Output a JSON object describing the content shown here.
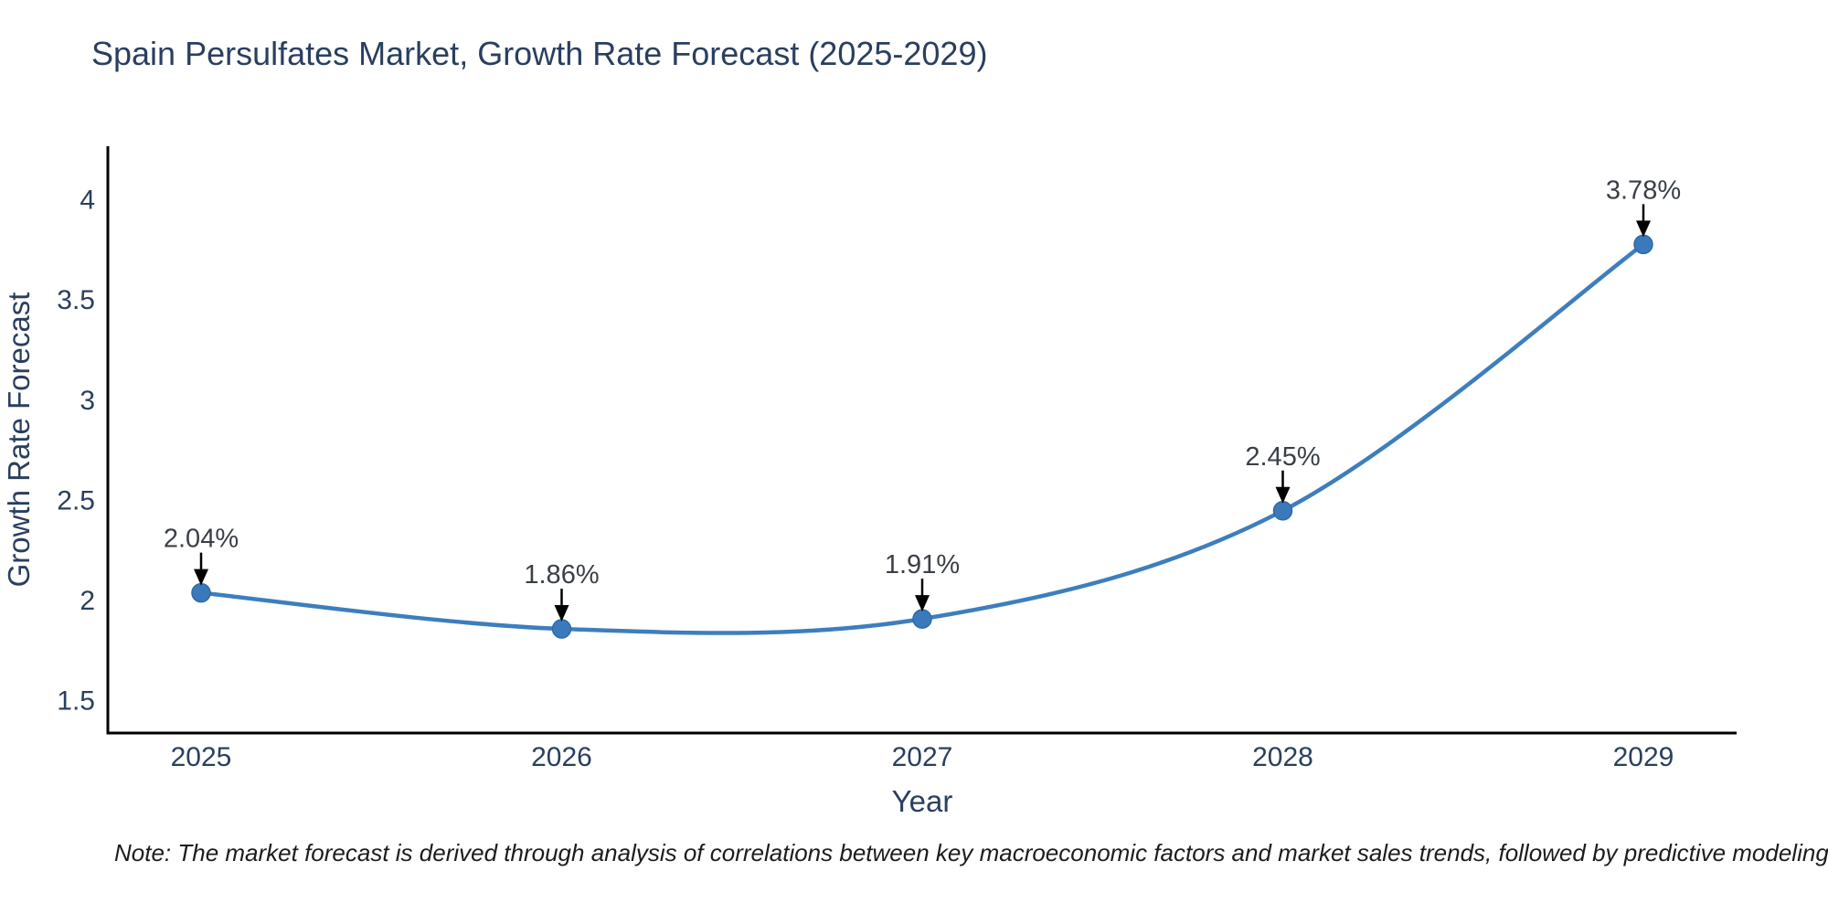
{
  "title": {
    "text": "Spain Persulfates Market, Growth Rate Forecast (2025-2029)",
    "color": "#2a3f5f"
  },
  "note": {
    "text": "Note: The market forecast is derived through analysis of correlations between key macroeconomic factors and market sales trends, followed by predictive modeling to project future sales"
  },
  "chart_data": {
    "type": "line",
    "line_shape": "spline",
    "title": "Spain Persulfates Market, Growth Rate Forecast (2025-2029)",
    "xlabel": "Year",
    "ylabel": "Growth Rate Forecast",
    "x": [
      2025,
      2026,
      2027,
      2028,
      2029
    ],
    "categories": [
      "2025",
      "2026",
      "2027",
      "2028",
      "2029"
    ],
    "values": [
      2.04,
      1.86,
      1.91,
      2.45,
      3.78
    ],
    "point_labels": [
      "2.04%",
      "1.86%",
      "1.91%",
      "2.45%",
      "3.78%"
    ],
    "y_tick_labels": [
      "1.5",
      "2",
      "2.5",
      "3",
      "3.5",
      "4"
    ],
    "y_tick_values": [
      1.5,
      2,
      2.5,
      3,
      3.5,
      4
    ],
    "ylim": [
      1.34,
      4.27
    ],
    "grid": false,
    "legend_position": "none",
    "colors": {
      "line": "#3d7ebd",
      "marker_fill": "#3a7abc",
      "marker_edge": "#2e6ba6",
      "axis_line": "#000000",
      "tick_text": "#2a3f5f",
      "axis_title_text": "#2a3f5f",
      "annotation_text": "#3a3f47",
      "annotation_arrow": "#000000"
    }
  }
}
